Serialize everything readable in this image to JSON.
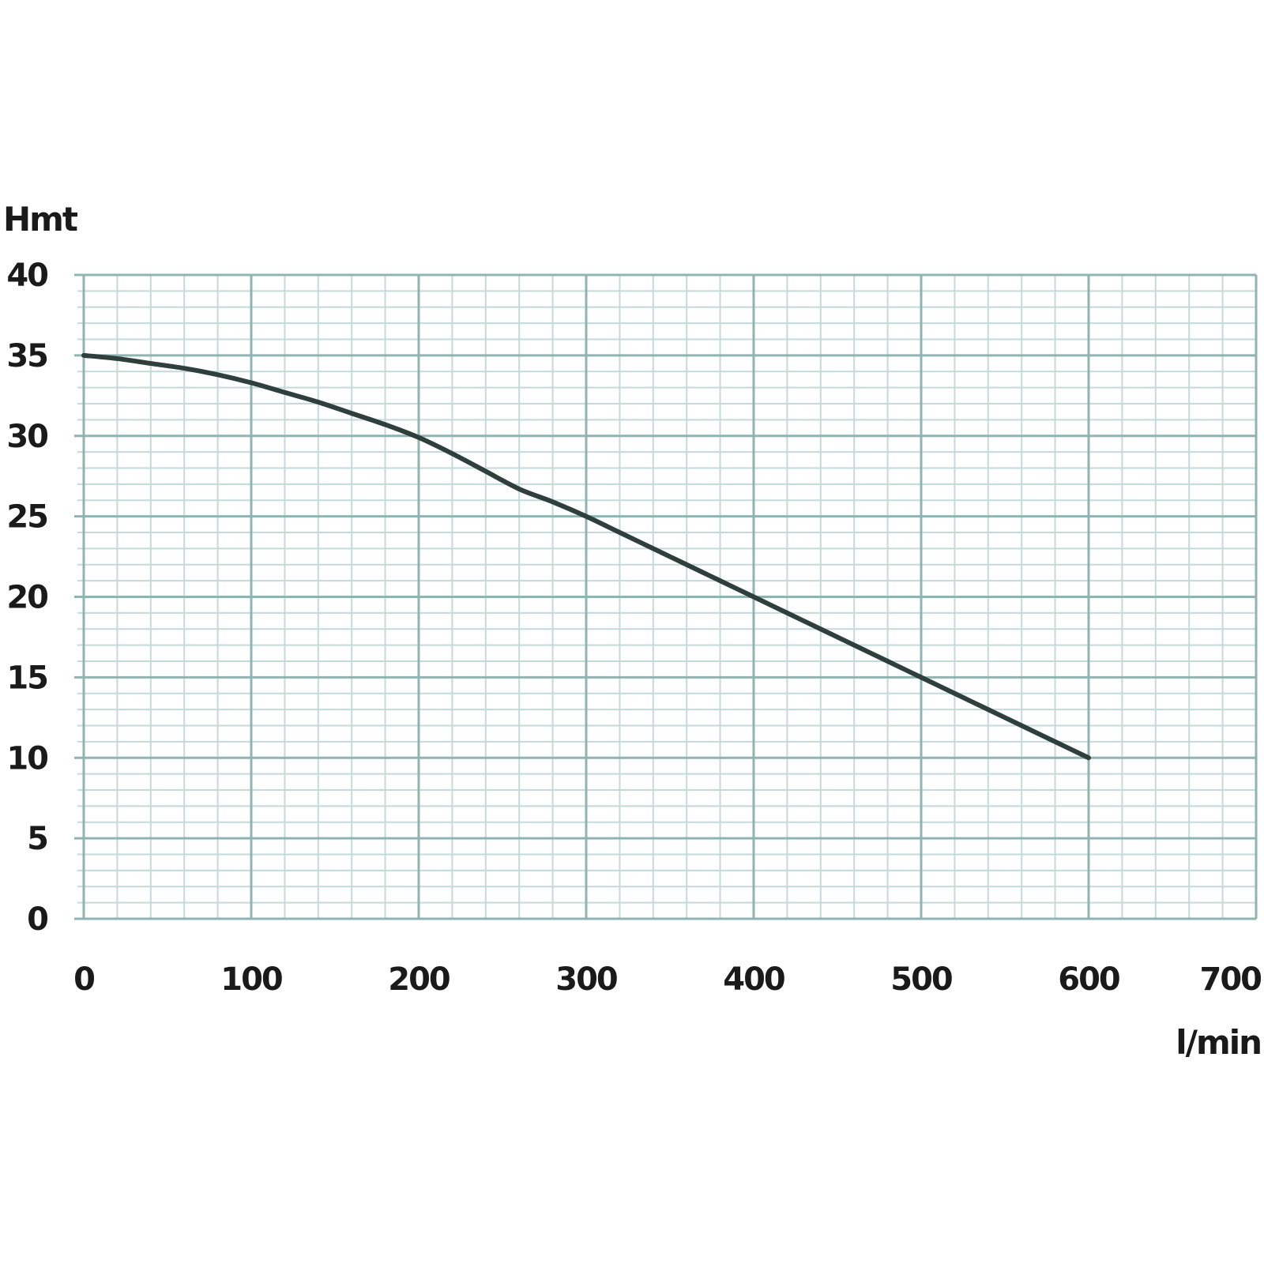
{
  "colors": {
    "background": "#ffffff",
    "grid_major": "#8fb4b2",
    "grid_minor": "#c3dad8",
    "curve": "#2e3f3c",
    "text": "#1a1a1a"
  },
  "chart_data": {
    "type": "line",
    "title": "",
    "xlabel": "l/min",
    "ylabel": "Hmt",
    "xlim": [
      0,
      700
    ],
    "ylim": [
      0,
      40
    ],
    "x_ticks": [
      0,
      100,
      200,
      300,
      400,
      500,
      600,
      700
    ],
    "y_ticks": [
      0,
      5,
      10,
      15,
      20,
      25,
      30,
      35,
      40
    ],
    "x_tick_labels": [
      "0",
      "100",
      "200",
      "300",
      "400",
      "500",
      "600",
      "700"
    ],
    "y_tick_labels": [
      "0",
      "5",
      "10",
      "15",
      "20",
      "25",
      "30",
      "35",
      "40"
    ],
    "grid": true,
    "grid_minor_x_step": 20,
    "grid_minor_y_step": 1,
    "legend": "none",
    "series": [
      {
        "x": [
          0,
          20,
          40,
          60,
          80,
          100,
          120,
          140,
          160,
          180,
          200,
          220,
          240,
          260,
          280,
          300,
          320,
          340,
          360,
          380,
          400,
          420,
          440,
          460,
          480,
          500,
          520,
          540,
          560,
          580,
          600
        ],
        "y": [
          35.0,
          34.8,
          34.5,
          34.2,
          33.8,
          33.3,
          32.7,
          32.1,
          31.4,
          30.7,
          29.9,
          28.9,
          27.8,
          26.7,
          25.9,
          25.0,
          24.0,
          23.0,
          22.0,
          21.0,
          20.0,
          19.0,
          18.0,
          17.0,
          16.0,
          15.0,
          14.0,
          13.0,
          12.0,
          11.0,
          10.0
        ]
      }
    ]
  }
}
